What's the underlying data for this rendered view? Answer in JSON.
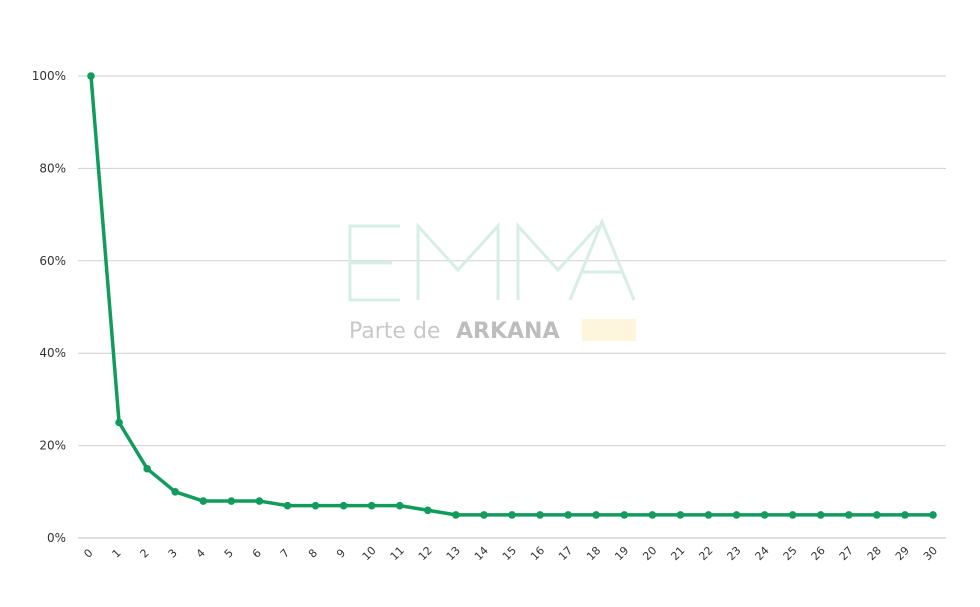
{
  "chart_data": {
    "type": "line",
    "x": [
      0,
      1,
      2,
      3,
      4,
      5,
      6,
      7,
      8,
      9,
      10,
      11,
      12,
      13,
      14,
      15,
      16,
      17,
      18,
      19,
      20,
      21,
      22,
      23,
      24,
      25,
      26,
      27,
      28,
      29,
      30
    ],
    "series": [
      {
        "values": [
          100,
          25,
          15,
          10,
          8,
          8,
          8,
          7,
          7,
          7,
          7,
          7,
          6,
          5,
          5,
          5,
          5,
          5,
          5,
          5,
          5,
          5,
          5,
          5,
          5,
          5,
          5,
          5,
          5,
          5,
          5
        ],
        "color": "#119b5d"
      }
    ],
    "ylim": [
      0,
      100
    ],
    "yticks": [
      "0%",
      "20%",
      "40%",
      "60%",
      "80%",
      "100%"
    ],
    "xlabel": "",
    "ylabel": "",
    "grid": true,
    "legend": "none"
  },
  "watermark": {
    "logo_text": "EMMA",
    "subtitle_prefix": "Parte de",
    "subtitle_brand": "ARKANA",
    "logo_color": "#d6efe4",
    "accent_color": "#fdf5dc"
  }
}
